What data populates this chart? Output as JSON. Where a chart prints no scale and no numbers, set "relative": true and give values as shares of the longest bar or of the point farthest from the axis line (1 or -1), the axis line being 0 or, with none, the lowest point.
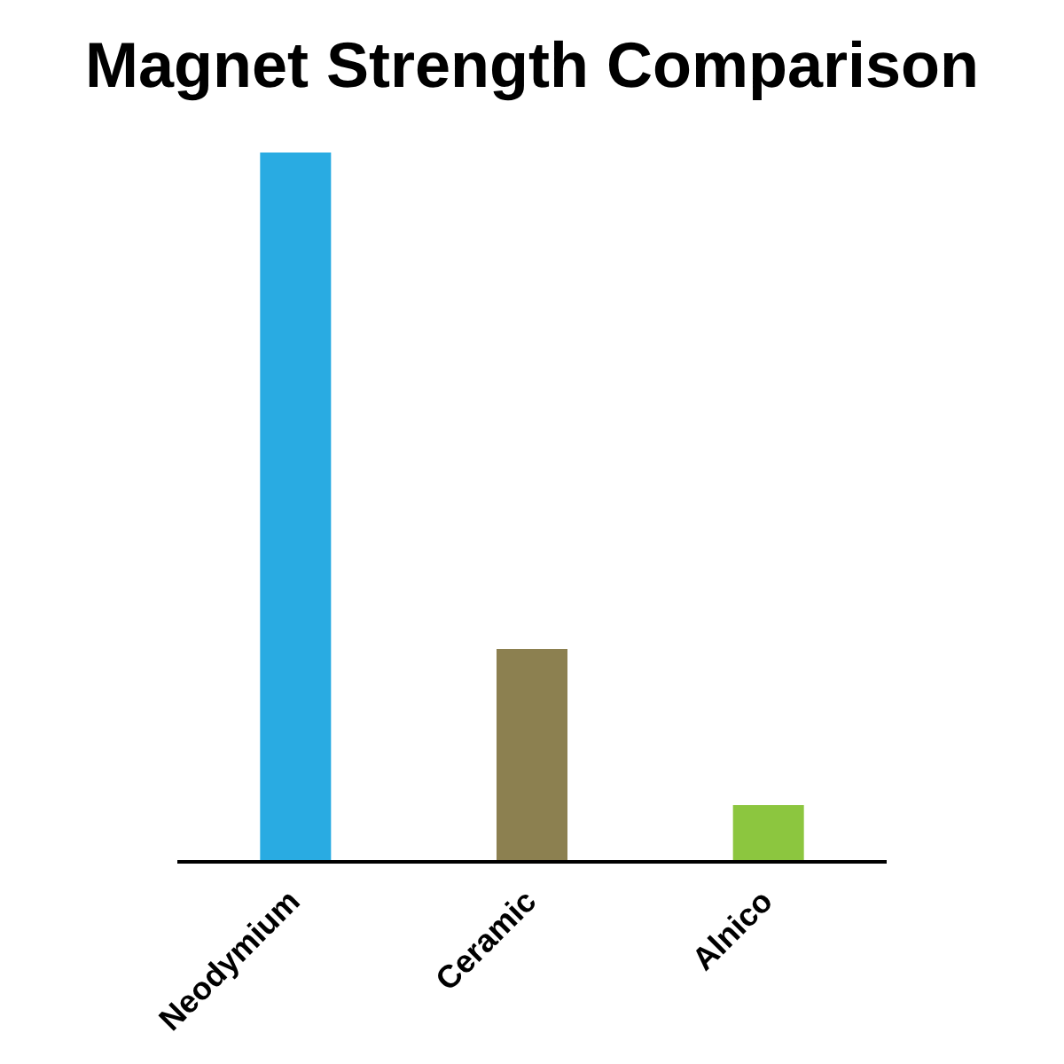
{
  "chart_data": {
    "type": "bar",
    "title": "Magnet Strength Comparison",
    "relative": true,
    "categories": [
      "Neodymium",
      "Ceramic",
      "Alnico"
    ],
    "values": [
      1,
      0.3,
      0.08
    ],
    "colors": [
      "#29abe2",
      "#8c8050",
      "#8cc63f"
    ]
  }
}
